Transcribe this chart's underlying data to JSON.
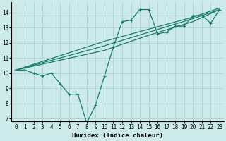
{
  "background_color": "#cceaea",
  "grid_color": "#aad4d4",
  "line_color": "#1a7a6a",
  "marker_style": "+",
  "marker_size": 3,
  "marker_linewidth": 0.8,
  "line_width": 0.9,
  "xlabel": "Humidex (Indice chaleur)",
  "xlabel_fontsize": 6.5,
  "tick_fontsize": 5.5,
  "xlim": [
    -0.5,
    23.5
  ],
  "ylim": [
    6.8,
    14.7
  ],
  "yticks": [
    7,
    8,
    9,
    10,
    11,
    12,
    13,
    14
  ],
  "xticks": [
    0,
    1,
    2,
    3,
    4,
    5,
    6,
    7,
    8,
    9,
    10,
    11,
    12,
    13,
    14,
    15,
    16,
    17,
    18,
    19,
    20,
    21,
    22,
    23
  ],
  "series": [
    {
      "x": [
        0,
        1,
        2,
        3,
        4,
        5,
        6,
        7,
        8,
        9,
        10,
        11,
        12,
        13,
        14,
        15,
        16,
        17,
        18,
        19,
        20,
        21,
        22,
        23
      ],
      "y": [
        10.2,
        10.2,
        10.0,
        9.8,
        10.0,
        9.3,
        8.6,
        8.6,
        6.7,
        7.9,
        9.8,
        11.7,
        13.4,
        13.5,
        14.2,
        14.2,
        12.6,
        12.7,
        13.1,
        13.1,
        13.8,
        13.8,
        13.3,
        14.2
      ]
    },
    {
      "x": [
        0,
        10,
        15,
        20,
        23
      ],
      "y": [
        10.2,
        11.5,
        12.5,
        13.4,
        14.2
      ]
    },
    {
      "x": [
        0,
        10,
        15,
        20,
        23
      ],
      "y": [
        10.2,
        11.8,
        12.7,
        13.6,
        14.2
      ]
    },
    {
      "x": [
        0,
        10,
        15,
        20,
        23
      ],
      "y": [
        10.2,
        12.1,
        12.9,
        13.7,
        14.3
      ]
    }
  ]
}
